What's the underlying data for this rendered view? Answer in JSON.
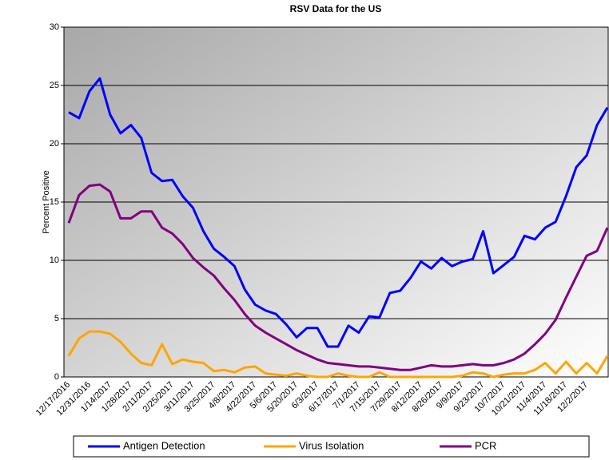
{
  "chart_data": {
    "type": "line",
    "title": "RSV Data for the US",
    "y_label": "Percent Positive",
    "categories": [
      "12/17/2016",
      null,
      "12/31/2016",
      null,
      "1/14/2017",
      null,
      "1/28/2017",
      null,
      "2/11/2017",
      null,
      "2/25/2017",
      null,
      "3/11/2017",
      null,
      "3/25/2017",
      null,
      "4/8/2017",
      null,
      "4/22/2017",
      null,
      "5/6/2017",
      null,
      "5/20/2017",
      null,
      "6/3/2017",
      null,
      "6/17/2017",
      null,
      "7/1/2017",
      null,
      "7/15/2017",
      null,
      "7/29/2017",
      null,
      "8/12/2017",
      null,
      "8/26/2017",
      null,
      "9/9/2017",
      null,
      "9/23/2017",
      null,
      "10/7/2017",
      null,
      "10/21/2017",
      null,
      "11/4/2017",
      null,
      "11/18/2017",
      null,
      "12/2/2017",
      null,
      null
    ],
    "series": [
      {
        "name": "Antigen Detection",
        "color": "#0000ff",
        "values": [
          22.7,
          22.2,
          24.5,
          25.6,
          22.5,
          20.9,
          21.6,
          20.5,
          17.5,
          16.8,
          16.9,
          15.5,
          14.5,
          12.5,
          11,
          10.3,
          9.5,
          7.5,
          6.2,
          5.7,
          5.4,
          4.5,
          3.4,
          4.2,
          4.2,
          2.6,
          2.6,
          4.4,
          3.8,
          5.2,
          5.1,
          7.2,
          7.4,
          8.5,
          9.9,
          9.3,
          10.2,
          9.5,
          9.9,
          10.1,
          12.5,
          8.9,
          9.6,
          10.3,
          12.1,
          11.8,
          12.8,
          13.3,
          15.5,
          18,
          19,
          21.6,
          23.1
        ]
      },
      {
        "name": "Virus Isolation",
        "color": "#ffa500",
        "values": [
          1.8,
          3.3,
          3.9,
          3.9,
          3.7,
          3.0,
          2.0,
          1.2,
          1.0,
          2.8,
          1.1,
          1.5,
          1.3,
          1.2,
          0.5,
          0.6,
          0.4,
          0.8,
          0.9,
          0.3,
          0.2,
          0.1,
          0.3,
          0.1,
          0,
          0,
          0.3,
          0.1,
          0,
          0,
          0.4,
          0,
          0,
          0,
          0,
          0,
          0,
          0,
          0.1,
          0.4,
          0.3,
          0,
          0.2,
          0.3,
          0.3,
          0.6,
          1.2,
          0.3,
          1.3,
          0.3,
          1.2,
          0.3,
          1.8
        ]
      },
      {
        "name": "PCR",
        "color": "#800080",
        "values": [
          13.2,
          15.6,
          16.4,
          16.5,
          15.9,
          13.6,
          13.6,
          14.2,
          14.2,
          12.8,
          12.3,
          11.4,
          10.2,
          9.4,
          8.7,
          7.6,
          6.6,
          5.4,
          4.4,
          3.8,
          3.3,
          2.8,
          2.3,
          1.9,
          1.5,
          1.2,
          1.1,
          1.0,
          0.9,
          0.9,
          0.8,
          0.7,
          0.6,
          0.6,
          0.8,
          1.0,
          0.9,
          0.9,
          1.0,
          1.1,
          1.0,
          1.0,
          1.2,
          1.5,
          2.0,
          2.8,
          3.7,
          4.9,
          6.8,
          8.6,
          10.4,
          10.8,
          12.8
        ]
      }
    ],
    "ylim": [
      0,
      30
    ],
    "yticks": [
      0,
      5,
      10,
      15,
      20,
      25,
      30
    ],
    "grid": true,
    "legend": "bottom"
  }
}
